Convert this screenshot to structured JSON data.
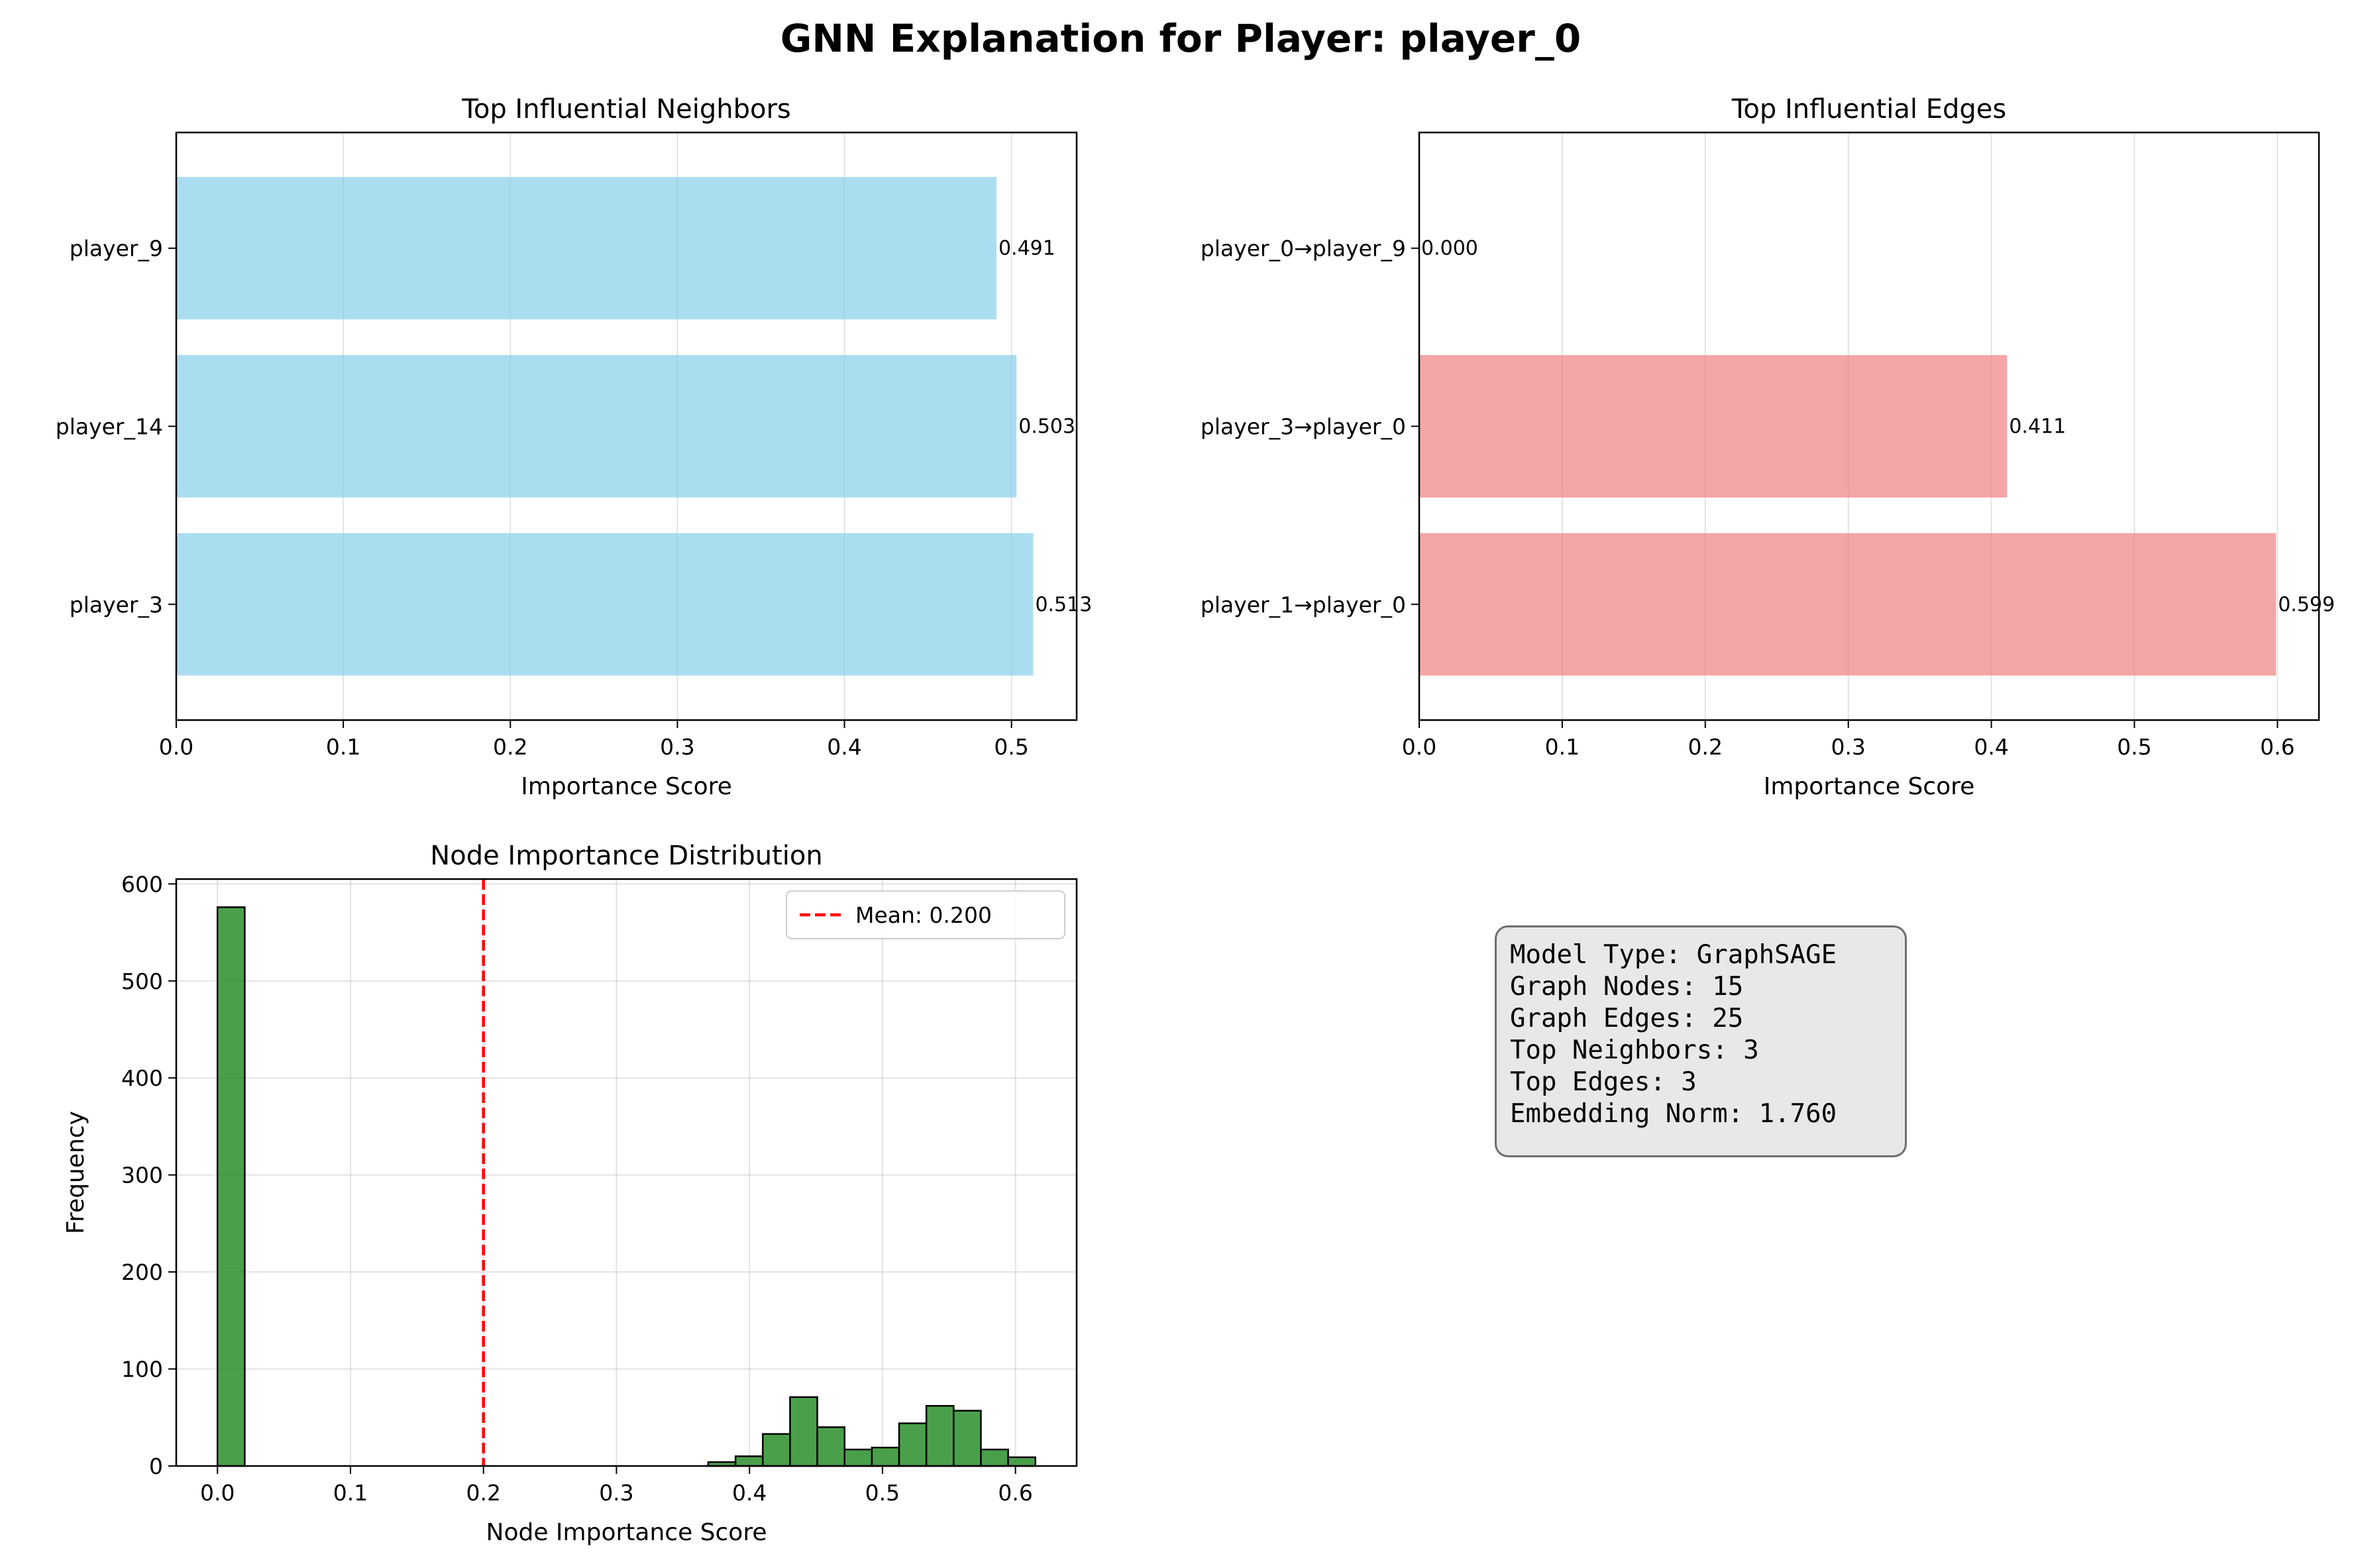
{
  "figure": {
    "title": "GNN Explanation for Player: player_0"
  },
  "chart_data": [
    {
      "type": "bar",
      "orientation": "horizontal",
      "title": "Top Influential Neighbors",
      "xlabel": "Importance Score",
      "ylabel": "",
      "categories": [
        "player_3",
        "player_14",
        "player_9"
      ],
      "values": [
        0.513,
        0.503,
        0.491
      ],
      "value_labels": [
        "0.513",
        "0.503",
        "0.491"
      ],
      "xlim": [
        0,
        0.539
      ],
      "xticks": [
        0.0,
        0.1,
        0.2,
        0.3,
        0.4,
        0.5
      ],
      "xtick_labels": [
        "0.0",
        "0.1",
        "0.2",
        "0.3",
        "0.4",
        "0.5"
      ],
      "grid": true,
      "color": "#87ceeb"
    },
    {
      "type": "bar",
      "orientation": "horizontal",
      "title": "Top Influential Edges",
      "xlabel": "Importance Score",
      "ylabel": "",
      "categories": [
        "player_1→player_0",
        "player_3→player_0",
        "player_0→player_9"
      ],
      "values": [
        0.599,
        0.411,
        0.0
      ],
      "value_labels": [
        "0.599",
        "0.411",
        "0.000"
      ],
      "xlim": [
        0,
        0.629
      ],
      "xticks": [
        0.0,
        0.1,
        0.2,
        0.3,
        0.4,
        0.5,
        0.6
      ],
      "xtick_labels": [
        "0.0",
        "0.1",
        "0.2",
        "0.3",
        "0.4",
        "0.5",
        "0.6"
      ],
      "grid": true,
      "color": "#f08080"
    },
    {
      "type": "histogram",
      "title": "Node Importance Distribution",
      "xlabel": "Node Importance Score",
      "ylabel": "Frequency",
      "bins": [
        {
          "x0": 0.0,
          "x1": 0.0205,
          "count": 576
        },
        {
          "x0": 0.0205,
          "x1": 0.041,
          "count": 0
        },
        {
          "x0": 0.041,
          "x1": 0.0615,
          "count": 0
        },
        {
          "x0": 0.0615,
          "x1": 0.082,
          "count": 0
        },
        {
          "x0": 0.082,
          "x1": 0.1025,
          "count": 0
        },
        {
          "x0": 0.1025,
          "x1": 0.123,
          "count": 0
        },
        {
          "x0": 0.123,
          "x1": 0.1435,
          "count": 0
        },
        {
          "x0": 0.1435,
          "x1": 0.164,
          "count": 0
        },
        {
          "x0": 0.164,
          "x1": 0.1845,
          "count": 0
        },
        {
          "x0": 0.1845,
          "x1": 0.205,
          "count": 0
        },
        {
          "x0": 0.205,
          "x1": 0.2255,
          "count": 0
        },
        {
          "x0": 0.2255,
          "x1": 0.246,
          "count": 0
        },
        {
          "x0": 0.246,
          "x1": 0.2665,
          "count": 0
        },
        {
          "x0": 0.2665,
          "x1": 0.287,
          "count": 0
        },
        {
          "x0": 0.287,
          "x1": 0.3075,
          "count": 0
        },
        {
          "x0": 0.3075,
          "x1": 0.328,
          "count": 0
        },
        {
          "x0": 0.328,
          "x1": 0.3485,
          "count": 0
        },
        {
          "x0": 0.3485,
          "x1": 0.369,
          "count": 0
        },
        {
          "x0": 0.369,
          "x1": 0.3895,
          "count": 4
        },
        {
          "x0": 0.3895,
          "x1": 0.41,
          "count": 10
        },
        {
          "x0": 0.41,
          "x1": 0.4305,
          "count": 33
        },
        {
          "x0": 0.4305,
          "x1": 0.451,
          "count": 71
        },
        {
          "x0": 0.451,
          "x1": 0.4715,
          "count": 40
        },
        {
          "x0": 0.4715,
          "x1": 0.492,
          "count": 17
        },
        {
          "x0": 0.492,
          "x1": 0.5125,
          "count": 19
        },
        {
          "x0": 0.5125,
          "x1": 0.533,
          "count": 44
        },
        {
          "x0": 0.533,
          "x1": 0.5535,
          "count": 62
        },
        {
          "x0": 0.5535,
          "x1": 0.574,
          "count": 57
        },
        {
          "x0": 0.574,
          "x1": 0.5945,
          "count": 17
        },
        {
          "x0": 0.5945,
          "x1": 0.615,
          "count": 9
        }
      ],
      "mean_line": {
        "x": 0.2,
        "label": "Mean: 0.200",
        "color": "#ff0000",
        "style": "dashed"
      },
      "xlim": [
        -0.031,
        0.646
      ],
      "ylim": [
        0,
        605
      ],
      "xticks": [
        0.0,
        0.1,
        0.2,
        0.3,
        0.4,
        0.5,
        0.6
      ],
      "xtick_labels": [
        "0.0",
        "0.1",
        "0.2",
        "0.3",
        "0.4",
        "0.5",
        "0.6"
      ],
      "yticks": [
        0,
        100,
        200,
        300,
        400,
        500,
        600
      ],
      "ytick_labels": [
        "0",
        "100",
        "200",
        "300",
        "400",
        "500",
        "600"
      ],
      "grid": true,
      "legend_position": "top-right",
      "color": "#228b22"
    }
  ],
  "info_box": {
    "lines": [
      "Model Type: GraphSAGE",
      "Graph Nodes: 15",
      "Graph Edges: 25",
      "Top Neighbors: 3",
      "Top Edges: 3",
      "Embedding Norm: 1.760"
    ]
  }
}
